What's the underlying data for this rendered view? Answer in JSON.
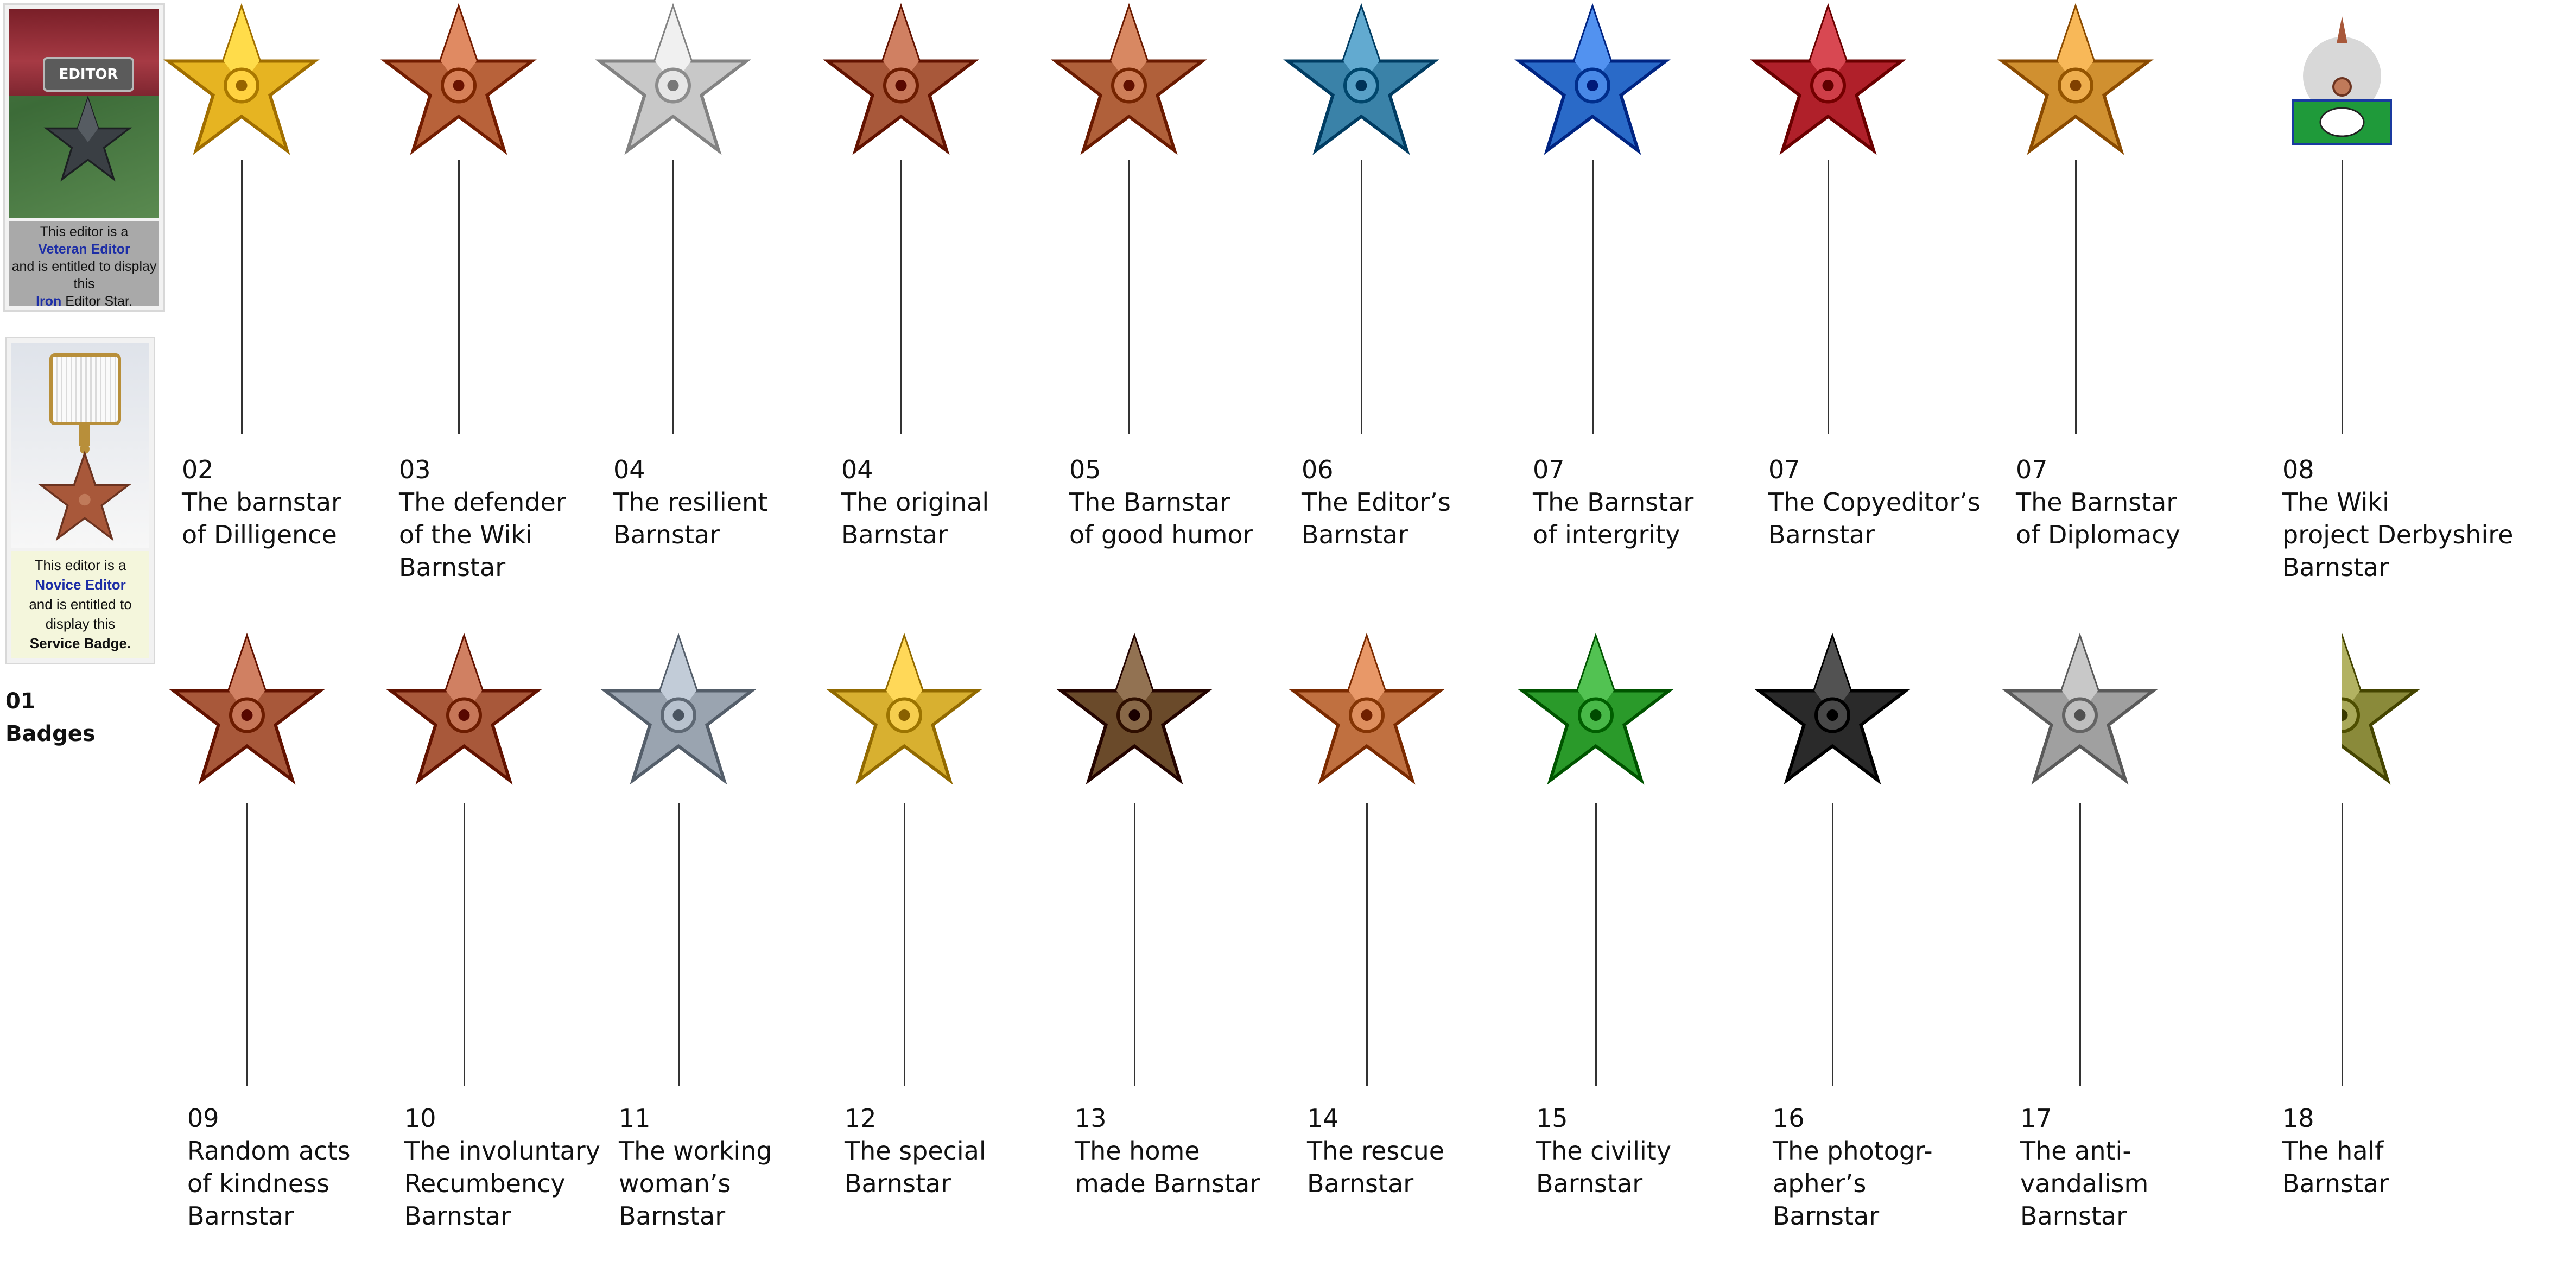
{
  "badges": {
    "veteran": {
      "tag": "EDITOR",
      "line1": "This editor is a",
      "line2": "Veteran Editor",
      "line3": "and is entitled to display",
      "line4": "this",
      "line5a": "Iron",
      "line5b": "Editor Star."
    },
    "novice": {
      "line1": "This editor is a",
      "line2": "Novice Editor",
      "line3": "and is entitled to",
      "line4": "display this",
      "line5": "Service Badge."
    }
  },
  "section": {
    "number": "01",
    "title": "Badges"
  },
  "colors": {
    "stem": "#333333",
    "link": "#1d2ea6"
  },
  "rows": [
    [
      {
        "num": "02",
        "lines": [
          "The barnstar",
          "of Dilligence"
        ],
        "icon": "gold-barnstar-icon",
        "color": "#e6b422"
      },
      {
        "num": "03",
        "lines": [
          "The defender",
          "of the Wiki",
          "Barnstar"
        ],
        "icon": "knight-helmet-barnstar-icon",
        "color": "#b8623a"
      },
      {
        "num": "04",
        "lines": [
          "The resilient",
          "Barnstar"
        ],
        "icon": "silver-barnstar-icon",
        "color": "#c8c8c8"
      },
      {
        "num": "04",
        "lines": [
          "The original",
          "Barnstar"
        ],
        "icon": "bronze-barnstar-icon",
        "color": "#a8583a"
      },
      {
        "num": "05",
        "lines": [
          "The Barnstar",
          "of good humor"
        ],
        "icon": "smiling-barnstar-icon",
        "color": "#b0603a"
      },
      {
        "num": "06",
        "lines": [
          "The Editor’s",
          "Barnstar"
        ],
        "icon": "blue-barnstar-icon",
        "color": "#3a82a8"
      },
      {
        "num": "07",
        "lines": [
          "The Barnstar",
          "of intergrity"
        ],
        "icon": "scales-barnstar-icon",
        "color": "#2a6ac8"
      },
      {
        "num": "07",
        "lines": [
          "The Copyeditor’s",
          "Barnstar"
        ],
        "icon": "quill-red-barnstar-icon",
        "color": "#b0202a"
      },
      {
        "num": "07",
        "lines": [
          "The Barnstar",
          "of Diplomacy"
        ],
        "icon": "laurel-barnstar-icon",
        "color": "#d09030"
      },
      {
        "num": "08",
        "lines": [
          "The Wiki",
          "project Derbyshire",
          "Barnstar"
        ],
        "icon": "derbyshire-ram-icon",
        "color": "#1f9a3a"
      }
    ],
    [
      {
        "num": "09",
        "lines": [
          "Random acts",
          "of kindness",
          "Barnstar"
        ],
        "icon": "smiley-barnstar-icon",
        "color": "#a8583a"
      },
      {
        "num": "10",
        "lines": [
          "The involuntary",
          "Recumbency",
          "Barnstar"
        ],
        "icon": "cow-barnstar-icon",
        "color": "#a8583a"
      },
      {
        "num": "11",
        "lines": [
          "The working",
          "woman’s",
          "Barnstar"
        ],
        "icon": "steel-blue-barnstar-icon",
        "color": "#9aa4b0"
      },
      {
        "num": "12",
        "lines": [
          "The special",
          "Barnstar"
        ],
        "icon": "rainbow-barnstar-icon",
        "color": "#d8b030"
      },
      {
        "num": "13",
        "lines": [
          "The home",
          "made Barnstar"
        ],
        "icon": "twig-barnstar-icon",
        "color": "#6a4a2a"
      },
      {
        "num": "14",
        "lines": [
          "The rescue",
          "Barnstar"
        ],
        "icon": "helicopter-barnstar-icon",
        "color": "#c07040"
      },
      {
        "num": "15",
        "lines": [
          "The civility",
          "Barnstar"
        ],
        "icon": "teacup-barnstar-icon",
        "color": "#2a9a2a"
      },
      {
        "num": "16",
        "lines": [
          "The photogr-",
          "apher’s",
          "Barnstar"
        ],
        "icon": "camera-lens-barnstar-icon",
        "color": "#2a2a2a"
      },
      {
        "num": "17",
        "lines": [
          "The anti-",
          "vandalism",
          "Barnstar"
        ],
        "icon": "paintbrush-barnstar-icon",
        "color": "#a0a0a0"
      },
      {
        "num": "18",
        "lines": [
          "The half",
          "Barnstar"
        ],
        "icon": "half-barnstar-icon",
        "color": "#8a8a3a"
      }
    ]
  ]
}
